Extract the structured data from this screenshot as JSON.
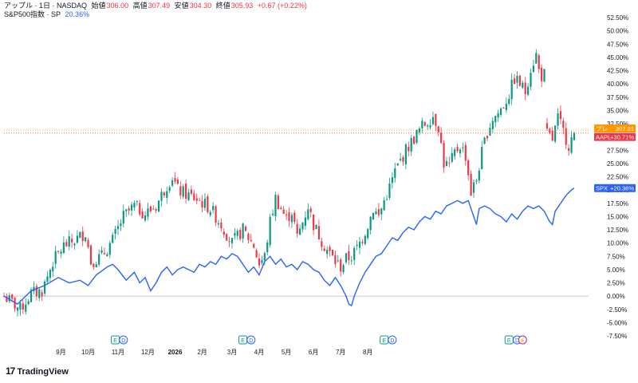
{
  "header": {
    "symbol_title": "アップル · 1日 · NASDAQ",
    "open_label": "始値",
    "open_value": "306.00",
    "high_label": "高値",
    "high_value": "307.49",
    "low_label": "安値",
    "low_value": "304.30",
    "close_label": "終値",
    "close_value": "305.93",
    "change": "+0.67 (+0.22%)",
    "compare_title": "S&P500指数 · SP",
    "compare_value": "20.36%"
  },
  "colors": {
    "up": "#089981",
    "down": "#f23645",
    "compare_line": "#2962ff",
    "pre_market_tag": "#ff9800",
    "aapl_tag": "#f23645",
    "spx_tag": "#2962ff",
    "earnings_icon": "#089981",
    "dividend_icon": "#2962ff",
    "split_icon": "#9c27b0"
  },
  "chart_data": {
    "type": "candlestick",
    "y_axis": {
      "unit": "%",
      "position": "right",
      "range": [
        -7.5,
        52.5
      ],
      "ticks": [
        "52.50%",
        "50.00%",
        "47.50%",
        "45.00%",
        "42.50%",
        "40.00%",
        "37.50%",
        "35.00%",
        "32.50%",
        "30.00%",
        "27.50%",
        "25.00%",
        "22.50%",
        "20.00%",
        "17.50%",
        "15.00%",
        "12.50%",
        "10.00%",
        "7.50%",
        "5.00%",
        "2.50%",
        "0.00%",
        "-2.50%",
        "-5.00%",
        "-7.50%"
      ]
    },
    "x_axis": {
      "labels": [
        "9月",
        "10月",
        "11月",
        "12月",
        "2026",
        "2月",
        "3月",
        "4月",
        "5月",
        "6月",
        "7月",
        "8月"
      ]
    },
    "price_tags": [
      {
        "label": "プレ",
        "value": "307.21",
        "color_key": "pre_market_tag"
      },
      {
        "label": "AAPL",
        "value": "+30.71%",
        "color_key": "aapl_tag"
      },
      {
        "label": "SPX",
        "value": "+20.36%",
        "color_key": "spx_tag"
      }
    ],
    "series": [
      {
        "name": "AAPL",
        "style": "candles",
        "keypoints": [
          [
            0,
            0.0
          ],
          [
            6,
            -2.5
          ],
          [
            10,
            0.5
          ],
          [
            14,
            1.0
          ],
          [
            18,
            6.5
          ],
          [
            22,
            9.5
          ],
          [
            26,
            10.5
          ],
          [
            30,
            12.0
          ],
          [
            32,
            6.5
          ],
          [
            36,
            7.5
          ],
          [
            40,
            10.5
          ],
          [
            44,
            15.0
          ],
          [
            48,
            17.0
          ],
          [
            52,
            15.5
          ],
          [
            56,
            17.0
          ],
          [
            60,
            21.0
          ],
          [
            62,
            22.5
          ],
          [
            64,
            20.0
          ],
          [
            68,
            19.0
          ],
          [
            72,
            18.0
          ],
          [
            76,
            16.5
          ],
          [
            80,
            13.5
          ],
          [
            84,
            10.0
          ],
          [
            88,
            12.5
          ],
          [
            92,
            9.5
          ],
          [
            94,
            6.0
          ],
          [
            96,
            7.5
          ],
          [
            98,
            14.0
          ],
          [
            100,
            18.5
          ],
          [
            102,
            16.5
          ],
          [
            104,
            14.5
          ],
          [
            106,
            16.0
          ],
          [
            108,
            11.0
          ],
          [
            110,
            14.0
          ],
          [
            112,
            17.0
          ],
          [
            114,
            13.5
          ],
          [
            116,
            11.5
          ],
          [
            118,
            9.5
          ],
          [
            120,
            8.0
          ],
          [
            122,
            6.5
          ],
          [
            124,
            5.5
          ],
          [
            126,
            7.0
          ],
          [
            128,
            7.5
          ],
          [
            130,
            9.0
          ],
          [
            132,
            11.0
          ],
          [
            134,
            13.5
          ],
          [
            136,
            16.5
          ],
          [
            138,
            15.0
          ],
          [
            140,
            18.0
          ],
          [
            142,
            20.5
          ],
          [
            144,
            23.5
          ],
          [
            146,
            25.5
          ],
          [
            148,
            27.5
          ],
          [
            150,
            29.0
          ],
          [
            152,
            30.5
          ],
          [
            154,
            32.0
          ],
          [
            156,
            33.0
          ],
          [
            158,
            34.0
          ],
          [
            160,
            32.0
          ],
          [
            162,
            25.0
          ],
          [
            164,
            24.5
          ],
          [
            166,
            27.0
          ],
          [
            168,
            28.5
          ],
          [
            170,
            26.5
          ],
          [
            172,
            19.5
          ],
          [
            174,
            22.0
          ],
          [
            176,
            27.0
          ],
          [
            178,
            31.0
          ],
          [
            180,
            33.5
          ],
          [
            182,
            34.5
          ],
          [
            184,
            36.0
          ],
          [
            186,
            38.0
          ],
          [
            188,
            41.0
          ],
          [
            190,
            40.0
          ],
          [
            192,
            38.5
          ],
          [
            194,
            43.0
          ],
          [
            196,
            45.5
          ],
          [
            197,
            42.5
          ],
          [
            198,
            41.5
          ],
          [
            199,
            41.8
          ],
          [
            200,
            30.5
          ],
          [
            202,
            29.5
          ],
          [
            204,
            33.5
          ],
          [
            206,
            31.0
          ],
          [
            208,
            28.5
          ],
          [
            210,
            30.71
          ]
        ],
        "gaps_after_index": [
          199
        ]
      },
      {
        "name": "SPX",
        "style": "line",
        "points": [
          [
            0,
            0.0
          ],
          [
            5,
            -1.5
          ],
          [
            10,
            1.0
          ],
          [
            15,
            2.0
          ],
          [
            20,
            3.5
          ],
          [
            24,
            2.5
          ],
          [
            28,
            3.0
          ],
          [
            31,
            2.0
          ],
          [
            34,
            4.0
          ],
          [
            38,
            5.5
          ],
          [
            40,
            6.0
          ],
          [
            42,
            5.0
          ],
          [
            45,
            3.0
          ],
          [
            48,
            4.5
          ],
          [
            50,
            2.5
          ],
          [
            52,
            3.5
          ],
          [
            54,
            1.0
          ],
          [
            56,
            2.5
          ],
          [
            58,
            4.5
          ],
          [
            60,
            5.5
          ],
          [
            62,
            4.0
          ],
          [
            64,
            5.0
          ],
          [
            66,
            5.5
          ],
          [
            68,
            5.0
          ],
          [
            70,
            4.5
          ],
          [
            72,
            6.0
          ],
          [
            74,
            5.5
          ],
          [
            76,
            6.5
          ],
          [
            78,
            6.0
          ],
          [
            80,
            7.5
          ],
          [
            82,
            7.0
          ],
          [
            84,
            8.0
          ],
          [
            86,
            7.5
          ],
          [
            88,
            6.0
          ],
          [
            90,
            4.5
          ],
          [
            92,
            5.5
          ],
          [
            94,
            4.0
          ],
          [
            96,
            6.5
          ],
          [
            98,
            7.5
          ],
          [
            100,
            6.0
          ],
          [
            102,
            7.0
          ],
          [
            104,
            5.5
          ],
          [
            106,
            6.0
          ],
          [
            108,
            5.0
          ],
          [
            110,
            6.5
          ],
          [
            112,
            6.0
          ],
          [
            114,
            5.0
          ],
          [
            116,
            4.5
          ],
          [
            118,
            3.0
          ],
          [
            120,
            2.0
          ],
          [
            122,
            3.5
          ],
          [
            124,
            2.0
          ],
          [
            126,
            0.0
          ],
          [
            127,
            -1.5
          ],
          [
            128,
            -1.8
          ],
          [
            129,
            0.0
          ],
          [
            131,
            2.5
          ],
          [
            133,
            4.5
          ],
          [
            135,
            6.0
          ],
          [
            137,
            7.5
          ],
          [
            139,
            8.0
          ],
          [
            141,
            9.5
          ],
          [
            143,
            11.0
          ],
          [
            145,
            10.5
          ],
          [
            147,
            12.0
          ],
          [
            149,
            13.0
          ],
          [
            151,
            12.5
          ],
          [
            153,
            14.0
          ],
          [
            155,
            15.0
          ],
          [
            157,
            14.5
          ],
          [
            159,
            16.0
          ],
          [
            161,
            15.5
          ],
          [
            163,
            17.0
          ],
          [
            165,
            17.5
          ],
          [
            167,
            18.0
          ],
          [
            169,
            17.5
          ],
          [
            171,
            18.0
          ],
          [
            173,
            15.0
          ],
          [
            174,
            13.5
          ],
          [
            175,
            16.5
          ],
          [
            177,
            17.0
          ],
          [
            179,
            16.5
          ],
          [
            181,
            15.5
          ],
          [
            183,
            15.0
          ],
          [
            185,
            14.0
          ],
          [
            187,
            15.5
          ],
          [
            189,
            14.5
          ],
          [
            191,
            16.0
          ],
          [
            193,
            17.0
          ],
          [
            195,
            16.5
          ],
          [
            197,
            17.0
          ],
          [
            199,
            16.0
          ],
          [
            200,
            15.0
          ],
          [
            201,
            14.0
          ],
          [
            202,
            13.5
          ],
          [
            203,
            16.0
          ],
          [
            205,
            17.5
          ],
          [
            207,
            19.0
          ],
          [
            209,
            20.0
          ],
          [
            210,
            20.36
          ]
        ]
      }
    ],
    "x_range": [
      0,
      215
    ],
    "month_label_positions": [
      21,
      31,
      42,
      53,
      63,
      73,
      84,
      94,
      104,
      114,
      124,
      134
    ],
    "event_markers": [
      {
        "type": "E",
        "x": 41
      },
      {
        "type": "D",
        "x": 44
      },
      {
        "type": "E",
        "x": 88
      },
      {
        "type": "D",
        "x": 91
      },
      {
        "type": "E",
        "x": 140
      },
      {
        "type": "D",
        "x": 143
      },
      {
        "type": "E",
        "x": 186
      },
      {
        "type": "D",
        "x": 189
      },
      {
        "type": "S",
        "x": 191
      }
    ]
  },
  "branding": {
    "name": "TradingView"
  }
}
